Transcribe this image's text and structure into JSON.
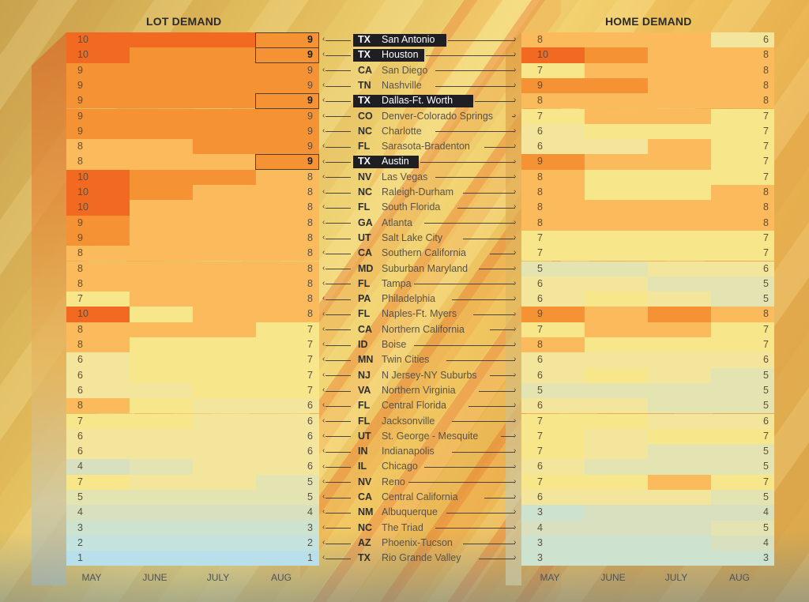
{
  "chart_data": {
    "type": "heatmap",
    "titles": {
      "left": "LOT DEMAND",
      "right": "HOME DEMAND"
    },
    "months": [
      "MAY",
      "JUNE",
      "JULY",
      "AUG"
    ],
    "value_range": [
      1,
      10
    ],
    "markets": [
      {
        "state": "TX",
        "city": "San Antonio",
        "highlight": true,
        "lot": [
          10,
          10,
          10,
          9
        ],
        "home": [
          8,
          8,
          8,
          6
        ]
      },
      {
        "state": "TX",
        "city": "Houston",
        "highlight": true,
        "lot": [
          10,
          9,
          9,
          9
        ],
        "home": [
          10,
          9,
          8,
          8
        ]
      },
      {
        "state": "CA",
        "city": "San Diego",
        "highlight": false,
        "lot": [
          9,
          9,
          9,
          9
        ],
        "home": [
          7,
          8,
          8,
          8
        ]
      },
      {
        "state": "TN",
        "city": "Nashville",
        "highlight": false,
        "lot": [
          9,
          9,
          9,
          9
        ],
        "home": [
          9,
          9,
          8,
          8
        ]
      },
      {
        "state": "TX",
        "city": "Dallas-Ft. Worth",
        "highlight": true,
        "lot": [
          9,
          9,
          9,
          9
        ],
        "home": [
          8,
          8,
          8,
          8
        ]
      },
      {
        "state": "CO",
        "city": "Denver-Colorado Springs",
        "highlight": false,
        "lot": [
          9,
          9,
          9,
          9
        ],
        "home": [
          7,
          8,
          8,
          7
        ]
      },
      {
        "state": "NC",
        "city": "Charlotte",
        "highlight": false,
        "lot": [
          9,
          9,
          9,
          9
        ],
        "home": [
          6,
          7,
          7,
          7
        ]
      },
      {
        "state": "FL",
        "city": "Sarasota-Bradenton",
        "highlight": false,
        "lot": [
          8,
          8,
          9,
          9
        ],
        "home": [
          6,
          6,
          8,
          7
        ]
      },
      {
        "state": "TX",
        "city": "Austin",
        "highlight": true,
        "lot": [
          8,
          8,
          8,
          9
        ],
        "home": [
          9,
          8,
          8,
          7
        ]
      },
      {
        "state": "NV",
        "city": "Las Vegas",
        "highlight": false,
        "lot": [
          10,
          9,
          9,
          8
        ],
        "home": [
          8,
          7,
          7,
          7
        ]
      },
      {
        "state": "NC",
        "city": "Raleigh-Durham",
        "highlight": false,
        "lot": [
          10,
          9,
          8,
          8
        ],
        "home": [
          8,
          7,
          7,
          8
        ]
      },
      {
        "state": "FL",
        "city": "South Florida",
        "highlight": false,
        "lot": [
          10,
          8,
          8,
          8
        ],
        "home": [
          8,
          8,
          8,
          8
        ]
      },
      {
        "state": "GA",
        "city": "Atlanta",
        "highlight": false,
        "lot": [
          9,
          8,
          8,
          8
        ],
        "home": [
          8,
          8,
          8,
          8
        ]
      },
      {
        "state": "UT",
        "city": "Salt Lake City",
        "highlight": false,
        "lot": [
          9,
          8,
          8,
          8
        ],
        "home": [
          7,
          7,
          7,
          7
        ]
      },
      {
        "state": "CA",
        "city": "Southern California",
        "highlight": false,
        "lot": [
          8,
          8,
          8,
          8
        ],
        "home": [
          7,
          7,
          7,
          7
        ]
      },
      {
        "state": "MD",
        "city": "Suburban Maryland",
        "highlight": false,
        "lot": [
          8,
          8,
          8,
          8
        ],
        "home": [
          5,
          5,
          6,
          6
        ]
      },
      {
        "state": "FL",
        "city": "Tampa",
        "highlight": false,
        "lot": [
          8,
          8,
          8,
          8
        ],
        "home": [
          6,
          6,
          5,
          5
        ]
      },
      {
        "state": "PA",
        "city": "Philadelphia",
        "highlight": false,
        "lot": [
          7,
          8,
          8,
          8
        ],
        "home": [
          6,
          7,
          6,
          5
        ]
      },
      {
        "state": "FL",
        "city": "Naples-Ft. Myers",
        "highlight": false,
        "lot": [
          10,
          7,
          8,
          8
        ],
        "home": [
          9,
          8,
          9,
          8
        ]
      },
      {
        "state": "CA",
        "city": "Northern California",
        "highlight": false,
        "lot": [
          8,
          8,
          8,
          7
        ],
        "home": [
          7,
          8,
          8,
          7
        ]
      },
      {
        "state": "ID",
        "city": "Boise",
        "highlight": false,
        "lot": [
          8,
          7,
          7,
          7
        ],
        "home": [
          8,
          7,
          7,
          7
        ]
      },
      {
        "state": "MN",
        "city": "Twin Cities",
        "highlight": false,
        "lot": [
          6,
          7,
          7,
          7
        ],
        "home": [
          6,
          6,
          6,
          6
        ]
      },
      {
        "state": "NJ",
        "city": "N Jersey-NY Suburbs",
        "highlight": false,
        "lot": [
          6,
          7,
          7,
          7
        ],
        "home": [
          6,
          7,
          6,
          5
        ]
      },
      {
        "state": "VA",
        "city": "Northern Virginia",
        "highlight": false,
        "lot": [
          6,
          6,
          7,
          7
        ],
        "home": [
          5,
          5,
          5,
          5
        ]
      },
      {
        "state": "FL",
        "city": "Central Florida",
        "highlight": false,
        "lot": [
          8,
          7,
          6,
          6
        ],
        "home": [
          6,
          6,
          5,
          5
        ]
      },
      {
        "state": "FL",
        "city": "Jacksonville",
        "highlight": false,
        "lot": [
          7,
          7,
          6,
          6
        ],
        "home": [
          7,
          7,
          6,
          6
        ]
      },
      {
        "state": "UT",
        "city": "St. George - Mesquite",
        "highlight": false,
        "lot": [
          6,
          6,
          6,
          6
        ],
        "home": [
          7,
          6,
          7,
          7
        ]
      },
      {
        "state": "IN",
        "city": "Indianapolis",
        "highlight": false,
        "lot": [
          6,
          6,
          6,
          6
        ],
        "home": [
          7,
          6,
          5,
          5
        ]
      },
      {
        "state": "IL",
        "city": "Chicago",
        "highlight": false,
        "lot": [
          4,
          5,
          6,
          6
        ],
        "home": [
          6,
          5,
          5,
          5
        ]
      },
      {
        "state": "NV",
        "city": "Reno",
        "highlight": false,
        "lot": [
          7,
          6,
          6,
          5
        ],
        "home": [
          7,
          7,
          8,
          7
        ]
      },
      {
        "state": "CA",
        "city": "Central California",
        "highlight": false,
        "lot": [
          5,
          5,
          5,
          5
        ],
        "home": [
          6,
          6,
          6,
          5
        ]
      },
      {
        "state": "NM",
        "city": "Albuquerque",
        "highlight": false,
        "lot": [
          4,
          4,
          4,
          4
        ],
        "home": [
          3,
          4,
          4,
          4
        ]
      },
      {
        "state": "NC",
        "city": "The Triad",
        "highlight": false,
        "lot": [
          3,
          3,
          3,
          3
        ],
        "home": [
          4,
          4,
          4,
          5
        ]
      },
      {
        "state": "AZ",
        "city": "Phoenix-Tucson",
        "highlight": false,
        "lot": [
          2,
          2,
          2,
          2
        ],
        "home": [
          3,
          3,
          3,
          4
        ]
      },
      {
        "state": "TX",
        "city": "Rio Grande Valley",
        "highlight": false,
        "lot": [
          1,
          1,
          1,
          1
        ],
        "home": [
          3,
          3,
          3,
          3
        ]
      }
    ],
    "color_scale": {
      "10": "#f26a22",
      "9": "#f49234",
      "8": "#fbba5c",
      "7": "#f8e78a",
      "6": "#f4e59c",
      "5": "#e4e3b2",
      "4": "#d8e0c0",
      "3": "#cde2cf",
      "2": "#c4e3de",
      "1": "#b9dfea"
    }
  }
}
